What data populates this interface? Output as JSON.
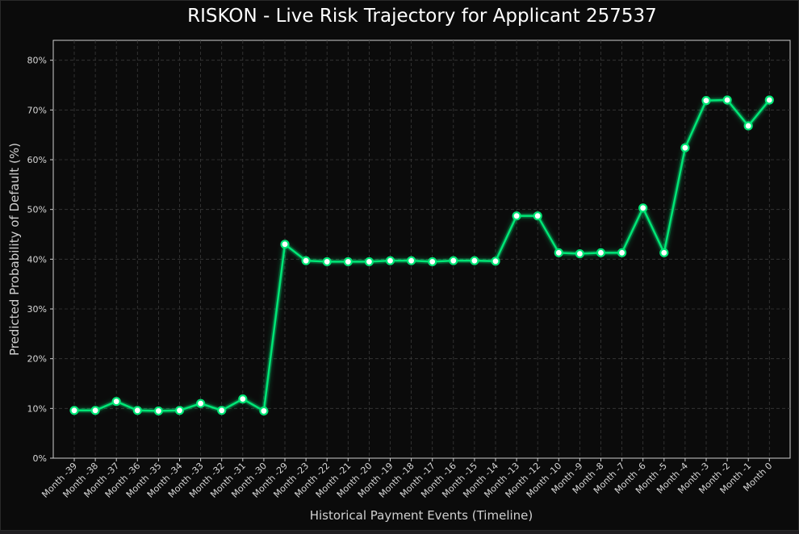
{
  "colors": {
    "background": "#0b0b0b",
    "line": "#00e676",
    "marker_fill": "#ffffff",
    "grid": "#3a3a3a",
    "text": "#d7d7d7"
  },
  "chart_data": {
    "type": "line",
    "title": "RISKON - Live Risk Trajectory for Applicant 257537",
    "xlabel": "Historical Payment Events (Timeline)",
    "ylabel": "Predicted Probability of Default (%)",
    "ylim": [
      0,
      84
    ],
    "y_ticks": [
      "0%",
      "10%",
      "20%",
      "30%",
      "40%",
      "50%",
      "60%",
      "70%",
      "80%"
    ],
    "grid": true,
    "categories": [
      "Month -39",
      "Month -38",
      "Month -37",
      "Month -36",
      "Month -35",
      "Month -34",
      "Month -33",
      "Month -32",
      "Month -31",
      "Month -30",
      "Month -29",
      "Month -23",
      "Month -22",
      "Month -21",
      "Month -20",
      "Month -19",
      "Month -18",
      "Month -17",
      "Month -16",
      "Month -15",
      "Month -14",
      "Month -13",
      "Month -12",
      "Month -10",
      "Month -9",
      "Month -8",
      "Month -7",
      "Month -6",
      "Month -5",
      "Month -4",
      "Month -3",
      "Month -2",
      "Month -1",
      "Month 0"
    ],
    "series": [
      {
        "values": [
          9.6,
          9.6,
          11.4,
          9.6,
          9.5,
          9.6,
          11.0,
          9.6,
          11.9,
          9.5,
          43.0,
          39.7,
          39.5,
          39.5,
          39.5,
          39.7,
          39.7,
          39.5,
          39.7,
          39.7,
          39.6,
          48.7,
          48.7,
          41.3,
          41.1,
          41.3,
          41.3,
          50.3,
          41.3,
          62.4,
          71.9,
          72.0,
          66.8,
          72.0
        ]
      }
    ]
  }
}
